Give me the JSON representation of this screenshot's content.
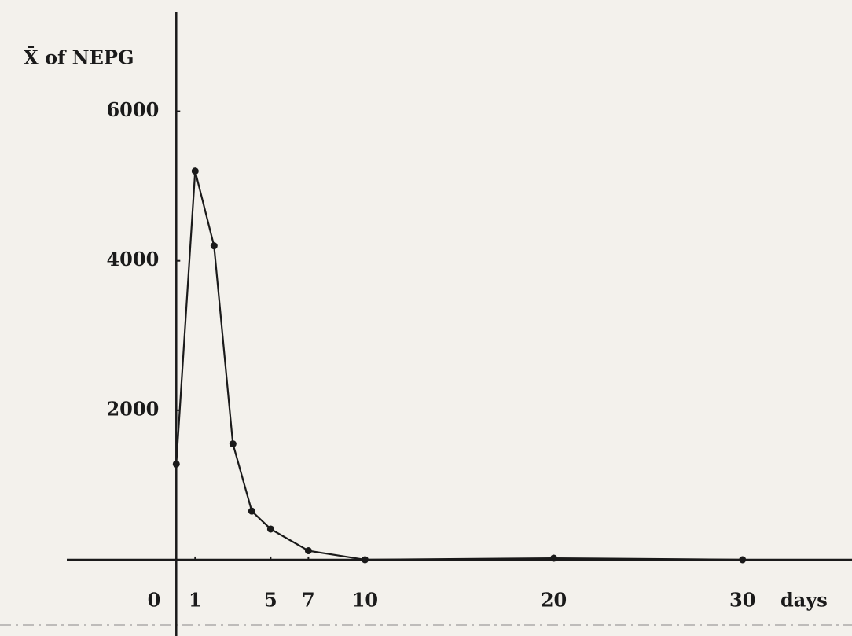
{
  "chart_data": {
    "type": "line",
    "y_label": "X̄ of NEPG",
    "x_label": "days",
    "x": [
      0,
      1,
      2,
      3,
      4,
      5,
      7,
      10,
      20,
      30
    ],
    "series": [
      {
        "color": "#1a1a1a",
        "values": [
          1280,
          5200,
          4200,
          1550,
          650,
          410,
          120,
          0,
          20,
          0
        ]
      }
    ],
    "xlim": [
      -5.8,
      35.8
    ],
    "ylim": [
      -1000,
      7300
    ],
    "xticks": [
      0,
      1,
      5,
      7,
      10,
      20,
      30
    ],
    "yticks": [
      2000,
      4000,
      6000
    ]
  }
}
